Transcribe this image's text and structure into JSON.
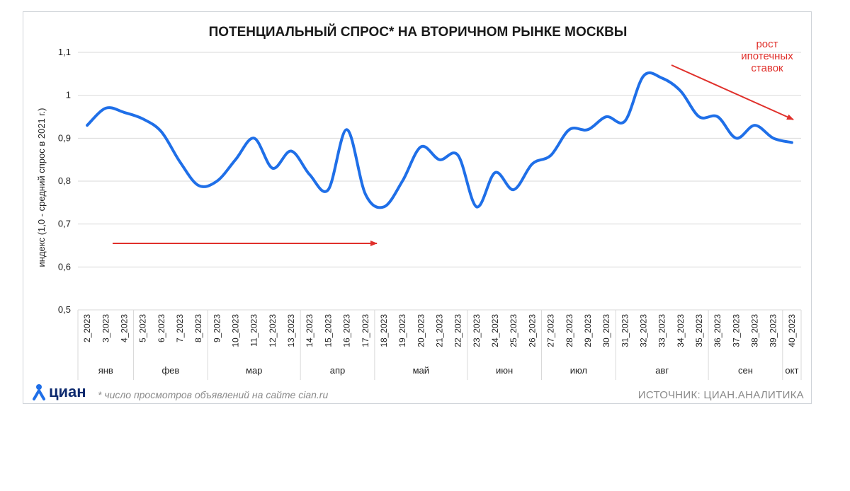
{
  "chart_data": {
    "type": "line",
    "title": "ПОТЕНЦИАЛЬНЫЙ СПРОС* НА ВТОРИЧНОМ РЫНКЕ МОСКВЫ",
    "ylabel": "индекс (1,0 - средний спрос в 2021 г.)",
    "ylim": [
      0.5,
      1.1
    ],
    "yticks": [
      "0,5",
      "0,6",
      "0,7",
      "0,8",
      "0,9",
      "1",
      "1,1"
    ],
    "grid": true,
    "categories": [
      "2_2023",
      "3_2023",
      "4_2023",
      "5_2023",
      "6_2023",
      "7_2023",
      "8_2023",
      "9_2023",
      "10_2023",
      "11_2023",
      "12_2023",
      "13_2023",
      "14_2023",
      "15_2023",
      "16_2023",
      "17_2023",
      "18_2023",
      "19_2023",
      "20_2023",
      "21_2023",
      "22_2023",
      "23_2023",
      "24_2023",
      "25_2023",
      "26_2023",
      "27_2023",
      "28_2023",
      "29_2023",
      "30_2023",
      "31_2023",
      "32_2023",
      "33_2023",
      "34_2023",
      "35_2023",
      "36_2023",
      "37_2023",
      "38_2023",
      "39_2023",
      "40_2023"
    ],
    "months": [
      {
        "label": "янв",
        "start": 0,
        "end": 3
      },
      {
        "label": "фев",
        "start": 3,
        "end": 7
      },
      {
        "label": "мар",
        "start": 7,
        "end": 12
      },
      {
        "label": "апр",
        "start": 12,
        "end": 16
      },
      {
        "label": "май",
        "start": 16,
        "end": 21
      },
      {
        "label": "июн",
        "start": 21,
        "end": 25
      },
      {
        "label": "июл",
        "start": 25,
        "end": 29
      },
      {
        "label": "авг",
        "start": 29,
        "end": 34
      },
      {
        "label": "сен",
        "start": 34,
        "end": 38
      },
      {
        "label": "окт",
        "start": 38,
        "end": 39
      }
    ],
    "series": [
      {
        "values": [
          0.93,
          0.97,
          0.96,
          0.945,
          0.915,
          0.845,
          0.79,
          0.8,
          0.85,
          0.9,
          0.83,
          0.87,
          0.815,
          0.78,
          0.92,
          0.77,
          0.74,
          0.8,
          0.88,
          0.85,
          0.86,
          0.74,
          0.82,
          0.78,
          0.84,
          0.86,
          0.92,
          0.92,
          0.95,
          0.94,
          1.045,
          1.04,
          1.01,
          0.95,
          0.95,
          0.9,
          0.93,
          0.9,
          0.89
        ],
        "color": "#1f6fe8"
      }
    ],
    "annotations": [
      {
        "text_lines": [
          "рост",
          "ипотечных",
          "ставок"
        ],
        "color": "#e0302b"
      }
    ]
  },
  "footer": {
    "logo_text": "циан",
    "note": "* число просмотров объявлений на сайте cian.ru",
    "source": "ИСТОЧНИК: ЦИАН.АНАЛИТИКА"
  }
}
